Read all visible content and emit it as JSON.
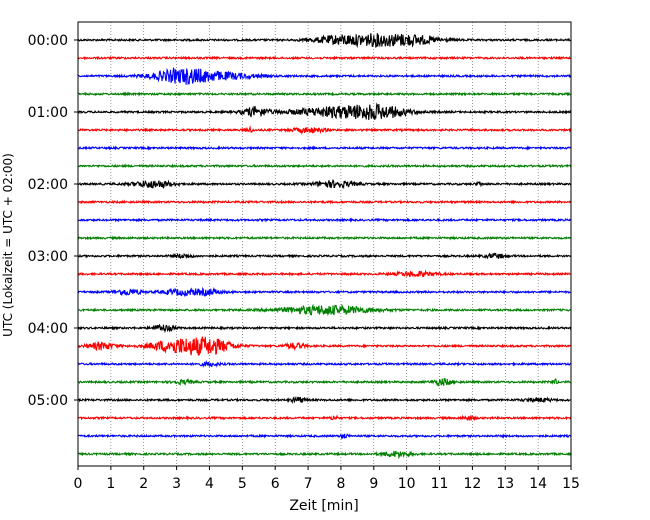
{
  "chart_data": {
    "type": "line",
    "title": "",
    "xlabel": "Zeit  [min]",
    "ylabel": "UTC (Lokalzeit = UTC + 02:00)",
    "xlim": [
      0,
      15
    ],
    "x_ticks": [
      0,
      1,
      2,
      3,
      4,
      5,
      6,
      7,
      8,
      9,
      10,
      11,
      12,
      13,
      14,
      15
    ],
    "y_tick_labels": [
      "00:00",
      "01:00",
      "02:00",
      "03:00",
      "04:00",
      "05:00"
    ],
    "x_grid": "dotted vertical lines at each minute",
    "trace_interval_min": 15,
    "trace_colors": [
      "#000000",
      "#ff0000",
      "#0000ff",
      "#008000"
    ],
    "traces": [
      {
        "start": "00:00",
        "color": "#000000",
        "events": [
          {
            "t": 8.0,
            "amp": 5,
            "w": 0.8
          },
          {
            "t": 10.0,
            "amp": 6,
            "w": 0.9
          },
          {
            "t": 9.0,
            "amp": 4,
            "w": 0.6
          }
        ]
      },
      {
        "start": "00:15",
        "color": "#ff0000",
        "events": []
      },
      {
        "start": "00:30",
        "color": "#0000ff",
        "events": [
          {
            "t": 3.2,
            "amp": 8,
            "w": 0.9
          },
          {
            "t": 4.5,
            "amp": 3,
            "w": 1.0
          }
        ]
      },
      {
        "start": "00:45",
        "color": "#008000",
        "events": []
      },
      {
        "start": "01:00",
        "color": "#000000",
        "events": [
          {
            "t": 5.4,
            "amp": 5,
            "w": 0.4
          },
          {
            "t": 8.0,
            "amp": 6,
            "w": 1.4
          },
          {
            "t": 9.2,
            "amp": 5,
            "w": 0.8
          }
        ]
      },
      {
        "start": "01:15",
        "color": "#ff0000",
        "events": [
          {
            "t": 5.2,
            "amp": 3,
            "w": 0.1
          },
          {
            "t": 7.0,
            "amp": 2.5,
            "w": 0.5
          }
        ]
      },
      {
        "start": "01:30",
        "color": "#0000ff",
        "events": []
      },
      {
        "start": "01:45",
        "color": "#008000",
        "events": []
      },
      {
        "start": "02:00",
        "color": "#000000",
        "events": [
          {
            "t": 2.3,
            "amp": 4,
            "w": 0.6
          },
          {
            "t": 7.8,
            "amp": 3.5,
            "w": 0.6
          },
          {
            "t": 12.2,
            "amp": 2,
            "w": 0.1
          }
        ]
      },
      {
        "start": "02:15",
        "color": "#ff0000",
        "events": []
      },
      {
        "start": "02:30",
        "color": "#0000ff",
        "events": []
      },
      {
        "start": "02:45",
        "color": "#008000",
        "events": []
      },
      {
        "start": "03:00",
        "color": "#000000",
        "events": [
          {
            "t": 3.2,
            "amp": 2,
            "w": 0.3
          },
          {
            "t": 12.7,
            "amp": 2.5,
            "w": 0.3
          }
        ]
      },
      {
        "start": "03:15",
        "color": "#ff0000",
        "events": [
          {
            "t": 10.3,
            "amp": 2.5,
            "w": 0.6
          }
        ]
      },
      {
        "start": "03:30",
        "color": "#0000ff",
        "events": [
          {
            "t": 1.5,
            "amp": 3,
            "w": 0.4
          },
          {
            "t": 3.2,
            "amp": 3,
            "w": 0.6
          },
          {
            "t": 4.0,
            "amp": 2.5,
            "w": 0.4
          }
        ]
      },
      {
        "start": "03:45",
        "color": "#008000",
        "events": [
          {
            "t": 7.6,
            "amp": 5,
            "w": 1.3
          }
        ]
      },
      {
        "start": "04:00",
        "color": "#000000",
        "events": [
          {
            "t": 2.6,
            "amp": 3.5,
            "w": 0.3
          }
        ]
      },
      {
        "start": "04:15",
        "color": "#ff0000",
        "events": [
          {
            "t": 0.7,
            "amp": 4,
            "w": 0.4
          },
          {
            "t": 3.0,
            "amp": 7,
            "w": 0.8
          },
          {
            "t": 4.0,
            "amp": 8,
            "w": 0.7
          },
          {
            "t": 6.6,
            "amp": 3,
            "w": 0.3
          }
        ]
      },
      {
        "start": "04:30",
        "color": "#0000ff",
        "events": [
          {
            "t": 4.0,
            "amp": 2,
            "w": 0.3
          }
        ]
      },
      {
        "start": "04:45",
        "color": "#008000",
        "events": [
          {
            "t": 3.2,
            "amp": 2,
            "w": 0.3
          },
          {
            "t": 11.1,
            "amp": 3.5,
            "w": 0.3
          },
          {
            "t": 14.5,
            "amp": 2.5,
            "w": 0.1
          }
        ]
      },
      {
        "start": "05:00",
        "color": "#000000",
        "events": [
          {
            "t": 6.7,
            "amp": 3,
            "w": 0.2
          },
          {
            "t": 14.0,
            "amp": 2,
            "w": 0.4
          }
        ]
      },
      {
        "start": "05:15",
        "color": "#ff0000",
        "events": [
          {
            "t": 7.8,
            "amp": 2.5,
            "w": 0.1
          },
          {
            "t": 11.9,
            "amp": 2,
            "w": 0.2
          }
        ]
      },
      {
        "start": "05:30",
        "color": "#0000ff",
        "events": [
          {
            "t": 8.1,
            "amp": 2.5,
            "w": 0.1
          }
        ]
      },
      {
        "start": "05:45",
        "color": "#008000",
        "events": [
          {
            "t": 9.7,
            "amp": 3,
            "w": 0.4
          }
        ]
      }
    ]
  }
}
